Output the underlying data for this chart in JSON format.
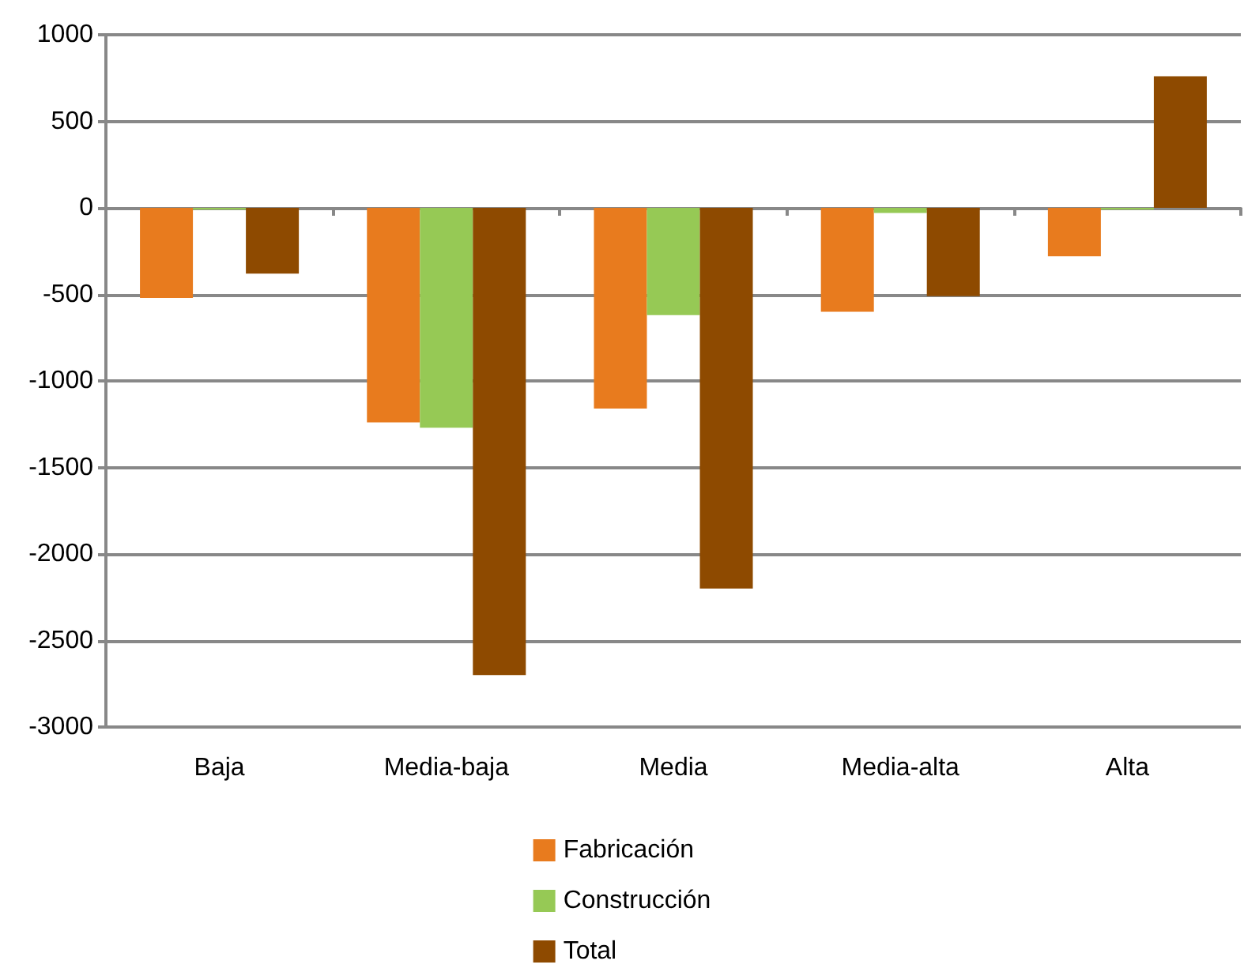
{
  "chart_data": {
    "type": "bar",
    "categories": [
      "Baja",
      "Media-baja",
      "Media",
      "Media-alta",
      "Alta"
    ],
    "series": [
      {
        "name": "Fabricación",
        "color": "#e87b1e",
        "values": [
          -520,
          -1240,
          -1160,
          -600,
          -280
        ]
      },
      {
        "name": "Construcción",
        "color": "#96c955",
        "values": [
          -10,
          -1270,
          -620,
          -30,
          -10
        ]
      },
      {
        "name": "Total",
        "color": "#8e4a00",
        "values": [
          -380,
          -2700,
          -2200,
          -510,
          760
        ]
      }
    ],
    "ylim": [
      -3000,
      1000
    ],
    "yticks": [
      -3000,
      -2500,
      -2000,
      -1500,
      -1000,
      -500,
      0,
      500,
      1000
    ],
    "grid": "y",
    "legend": "bottom"
  }
}
